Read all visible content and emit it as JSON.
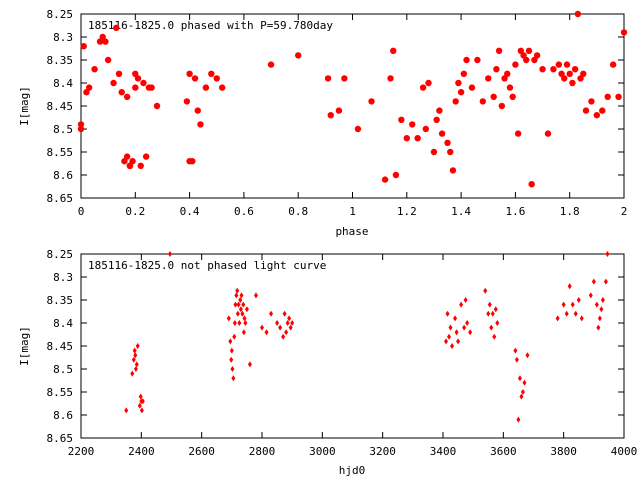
{
  "chart_data": [
    {
      "type": "scatter",
      "title": "185116-1825.0 phased with P=59.780day",
      "xlabel": "phase",
      "ylabel": "I[mag]",
      "xlim": [
        0,
        2
      ],
      "ylim": [
        8.65,
        8.25
      ],
      "y_inverted": true,
      "xticks": [
        "0",
        "0.2",
        "0.4",
        "0.6",
        "0.8",
        "1",
        "1.2",
        "1.4",
        "1.6",
        "1.8",
        "2"
      ],
      "yticks": [
        "8.25",
        "8.3",
        "8.35",
        "8.4",
        "8.45",
        "8.5",
        "8.55",
        "8.6",
        "8.65"
      ],
      "marker_color": "#ff0000",
      "marker": "filled-circle",
      "x": [
        0.0,
        0.0,
        0.01,
        0.02,
        0.03,
        0.05,
        0.07,
        0.08,
        0.09,
        0.1,
        0.12,
        0.13,
        0.14,
        0.15,
        0.16,
        0.17,
        0.17,
        0.18,
        0.18,
        0.19,
        0.2,
        0.2,
        0.21,
        0.22,
        0.23,
        0.24,
        0.25,
        0.26,
        0.28,
        0.39,
        0.4,
        0.4,
        0.41,
        0.42,
        0.43,
        0.44,
        0.46,
        0.48,
        0.5,
        0.52,
        0.7,
        0.8,
        0.91,
        0.92,
        0.95,
        0.97,
        1.02,
        1.07,
        1.12,
        1.14,
        1.15,
        1.16,
        1.18,
        1.2,
        1.22,
        1.24,
        1.26,
        1.27,
        1.28,
        1.3,
        1.31,
        1.32,
        1.33,
        1.35,
        1.36,
        1.37,
        1.38,
        1.39,
        1.4,
        1.41,
        1.42,
        1.44,
        1.46,
        1.48,
        1.5,
        1.52,
        1.53,
        1.54,
        1.55,
        1.56,
        1.57,
        1.58,
        1.59,
        1.6,
        1.61,
        1.62,
        1.63,
        1.64,
        1.65,
        1.66,
        1.67,
        1.68,
        1.7,
        1.72,
        1.74,
        1.76,
        1.77,
        1.78,
        1.79,
        1.8,
        1.81,
        1.82,
        1.83,
        1.84,
        1.85,
        1.86,
        1.88,
        1.9,
        1.92,
        1.94,
        1.96,
        1.98,
        2.0
      ],
      "y": [
        8.49,
        8.5,
        8.32,
        8.42,
        8.41,
        8.37,
        8.31,
        8.3,
        8.31,
        8.35,
        8.4,
        8.28,
        8.38,
        8.42,
        8.57,
        8.43,
        8.56,
        8.58,
        8.58,
        8.57,
        8.38,
        8.41,
        8.39,
        8.58,
        8.4,
        8.56,
        8.41,
        8.41,
        8.45,
        8.44,
        8.38,
        8.57,
        8.57,
        8.39,
        8.46,
        8.49,
        8.41,
        8.38,
        8.39,
        8.41,
        8.36,
        8.34,
        8.39,
        8.47,
        8.46,
        8.39,
        8.5,
        8.44,
        8.61,
        8.39,
        8.33,
        8.6,
        8.48,
        8.52,
        8.49,
        8.52,
        8.41,
        8.5,
        8.4,
        8.55,
        8.48,
        8.46,
        8.51,
        8.53,
        8.55,
        8.59,
        8.44,
        8.4,
        8.42,
        8.38,
        8.35,
        8.41,
        8.35,
        8.44,
        8.39,
        8.43,
        8.37,
        8.33,
        8.45,
        8.39,
        8.38,
        8.41,
        8.43,
        8.36,
        8.51,
        8.33,
        8.34,
        8.35,
        8.33,
        8.62,
        8.35,
        8.34,
        8.37,
        8.51,
        8.37,
        8.36,
        8.38,
        8.39,
        8.36,
        8.38,
        8.4,
        8.37,
        8.25,
        8.39,
        8.38,
        8.46,
        8.44,
        8.47,
        8.46,
        8.43,
        8.36,
        8.43,
        8.29
      ]
    },
    {
      "type": "scatter",
      "title": "185116-1825.0 not phased light curve",
      "xlabel": "hjd0",
      "ylabel": "I[mag]",
      "xlim": [
        2200,
        4000
      ],
      "ylim": [
        8.65,
        8.25
      ],
      "y_inverted": true,
      "xticks": [
        "2200",
        "2400",
        "2600",
        "2800",
        "3000",
        "3200",
        "3400",
        "3600",
        "3800",
        "4000"
      ],
      "yticks": [
        "8.25",
        "8.3",
        "8.35",
        "8.4",
        "8.45",
        "8.5",
        "8.55",
        "8.6",
        "8.65"
      ],
      "marker_color": "#ff0000",
      "marker": "small-diamond",
      "x": [
        2350,
        2370,
        2375,
        2378,
        2380,
        2382,
        2385,
        2388,
        2395,
        2398,
        2400,
        2402,
        2405,
        2495,
        2690,
        2695,
        2698,
        2700,
        2702,
        2705,
        2708,
        2710,
        2712,
        2715,
        2718,
        2720,
        2722,
        2725,
        2728,
        2730,
        2732,
        2735,
        2738,
        2740,
        2742,
        2745,
        2750,
        2760,
        2780,
        2800,
        2815,
        2830,
        2850,
        2860,
        2870,
        2875,
        2880,
        2885,
        2890,
        2895,
        2900,
        3410,
        3415,
        3420,
        3425,
        3430,
        3440,
        3445,
        3450,
        3460,
        3470,
        3475,
        3480,
        3490,
        3540,
        3550,
        3555,
        3560,
        3565,
        3570,
        3575,
        3580,
        3640,
        3645,
        3650,
        3655,
        3660,
        3665,
        3670,
        3680,
        3780,
        3800,
        3810,
        3820,
        3830,
        3840,
        3850,
        3860,
        3890,
        3900,
        3910,
        3915,
        3920,
        3925,
        3930,
        3940,
        3945
      ],
      "y": [
        8.59,
        8.51,
        8.48,
        8.46,
        8.47,
        8.5,
        8.49,
        8.45,
        8.58,
        8.56,
        8.57,
        8.59,
        8.57,
        8.25,
        8.39,
        8.44,
        8.48,
        8.46,
        8.5,
        8.52,
        8.43,
        8.4,
        8.36,
        8.34,
        8.33,
        8.38,
        8.36,
        8.4,
        8.35,
        8.37,
        8.34,
        8.38,
        8.36,
        8.42,
        8.39,
        8.4,
        8.37,
        8.49,
        8.34,
        8.41,
        8.42,
        8.38,
        8.4,
        8.41,
        8.43,
        8.38,
        8.42,
        8.4,
        8.39,
        8.41,
        8.4,
        8.44,
        8.38,
        8.43,
        8.41,
        8.45,
        8.39,
        8.42,
        8.44,
        8.36,
        8.41,
        8.35,
        8.4,
        8.42,
        8.33,
        8.38,
        8.36,
        8.41,
        8.38,
        8.43,
        8.37,
        8.4,
        8.46,
        8.48,
        8.61,
        8.52,
        8.56,
        8.55,
        8.53,
        8.47,
        8.39,
        8.36,
        8.38,
        8.32,
        8.36,
        8.38,
        8.35,
        8.39,
        8.34,
        8.31,
        8.36,
        8.41,
        8.39,
        8.37,
        8.35,
        8.31,
        8.25
      ]
    }
  ]
}
